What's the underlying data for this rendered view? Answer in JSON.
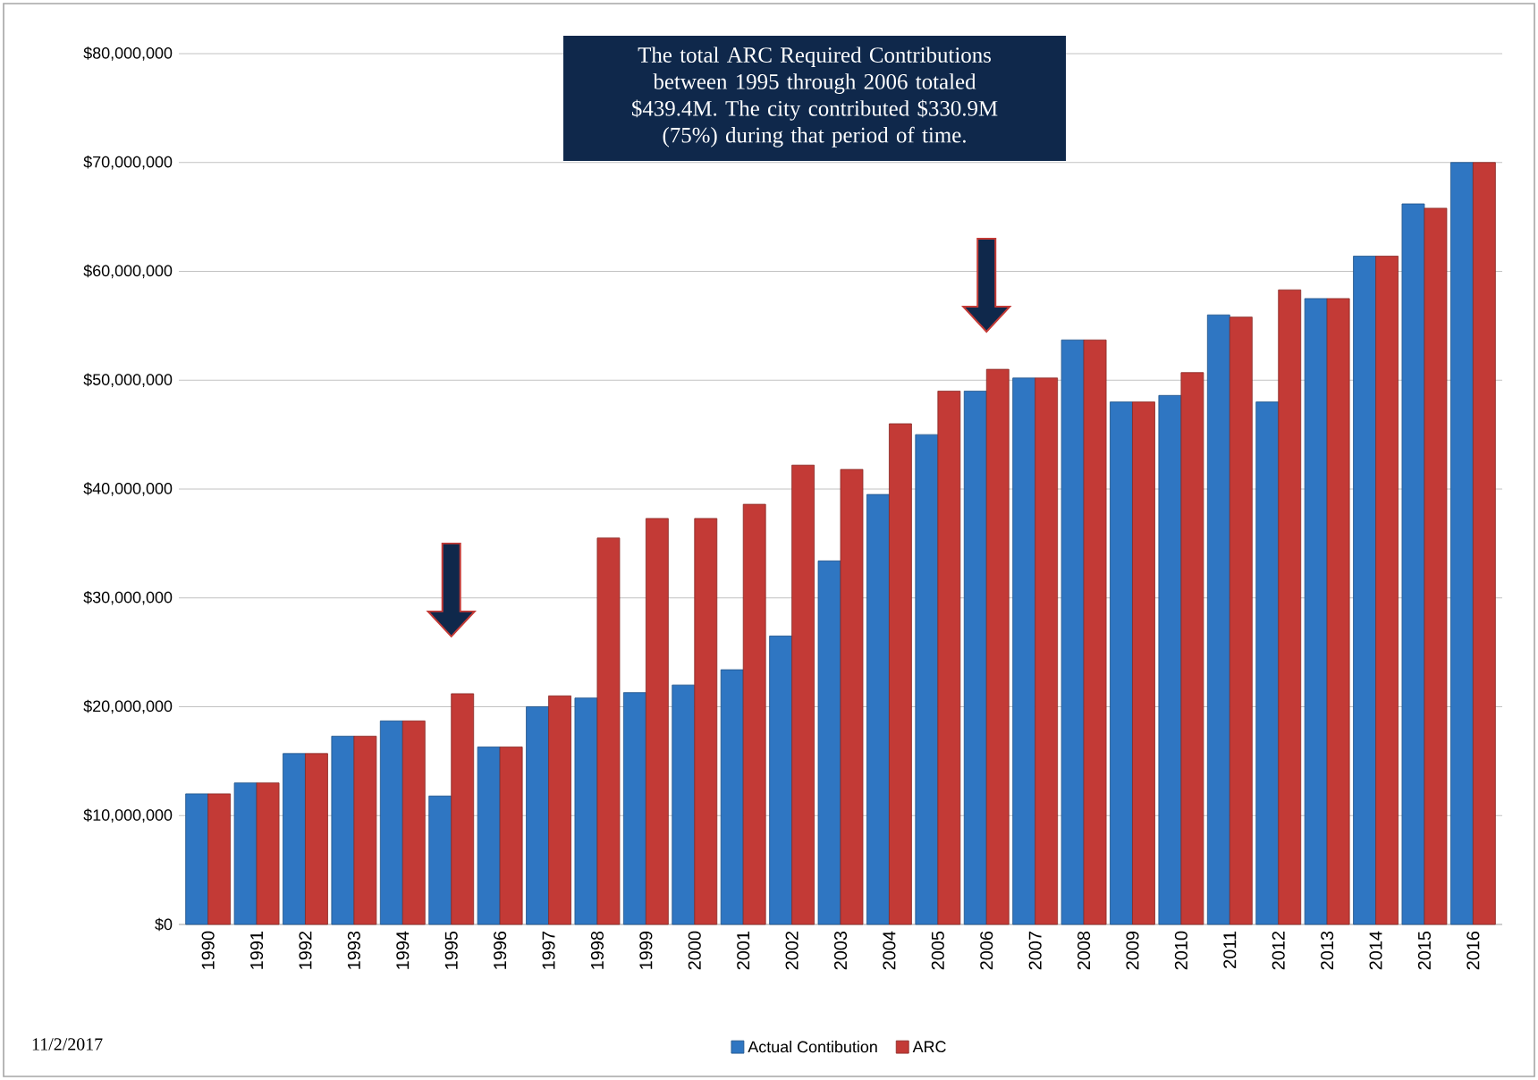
{
  "chart_data": {
    "type": "bar",
    "categories": [
      "1990",
      "1991",
      "1992",
      "1993",
      "1994",
      "1995",
      "1996",
      "1997",
      "1998",
      "1999",
      "2000",
      "2001",
      "2002",
      "2003",
      "2004",
      "2005",
      "2006",
      "2007",
      "2008",
      "2009",
      "2010",
      "2011",
      "2012",
      "2013",
      "2014",
      "2015",
      "2016"
    ],
    "series": [
      {
        "name": "Actual Contibution",
        "color": "#2f76c2",
        "values": [
          12000000,
          13000000,
          15700000,
          17300000,
          18700000,
          11800000,
          16300000,
          20000000,
          20800000,
          21300000,
          22000000,
          23400000,
          26500000,
          33400000,
          39500000,
          45000000,
          49000000,
          50200000,
          53700000,
          48000000,
          48600000,
          56000000,
          48000000,
          57500000,
          61400000,
          66200000,
          70000000
        ]
      },
      {
        "name": "ARC",
        "color": "#c33a36",
        "values": [
          12000000,
          13000000,
          15700000,
          17300000,
          18700000,
          21200000,
          16300000,
          21000000,
          35500000,
          37300000,
          37300000,
          38600000,
          42200000,
          41800000,
          46000000,
          49000000,
          51000000,
          50200000,
          53700000,
          48000000,
          50700000,
          55800000,
          58300000,
          57500000,
          61400000,
          65800000,
          70000000
        ]
      }
    ],
    "ylim": [
      0,
      80000000
    ],
    "yticks": [
      {
        "value": 0,
        "label": "$0"
      },
      {
        "value": 10000000,
        "label": "$10,000,000"
      },
      {
        "value": 20000000,
        "label": "$20,000,000"
      },
      {
        "value": 30000000,
        "label": "$30,000,000"
      },
      {
        "value": 40000000,
        "label": "$40,000,000"
      },
      {
        "value": 50000000,
        "label": "$50,000,000"
      },
      {
        "value": 60000000,
        "label": "$60,000,000"
      },
      {
        "value": 70000000,
        "label": "$70,000,000"
      },
      {
        "value": 80000000,
        "label": "$80,000,000"
      }
    ],
    "grid": "y",
    "legend": "bottom",
    "annotations": [
      "The total ARC Required Contributions between 1995 through 2006 totaled $439.4M. The city contributed $330.9M (75%) during that period of time.",
      "11/2/2017"
    ]
  }
}
